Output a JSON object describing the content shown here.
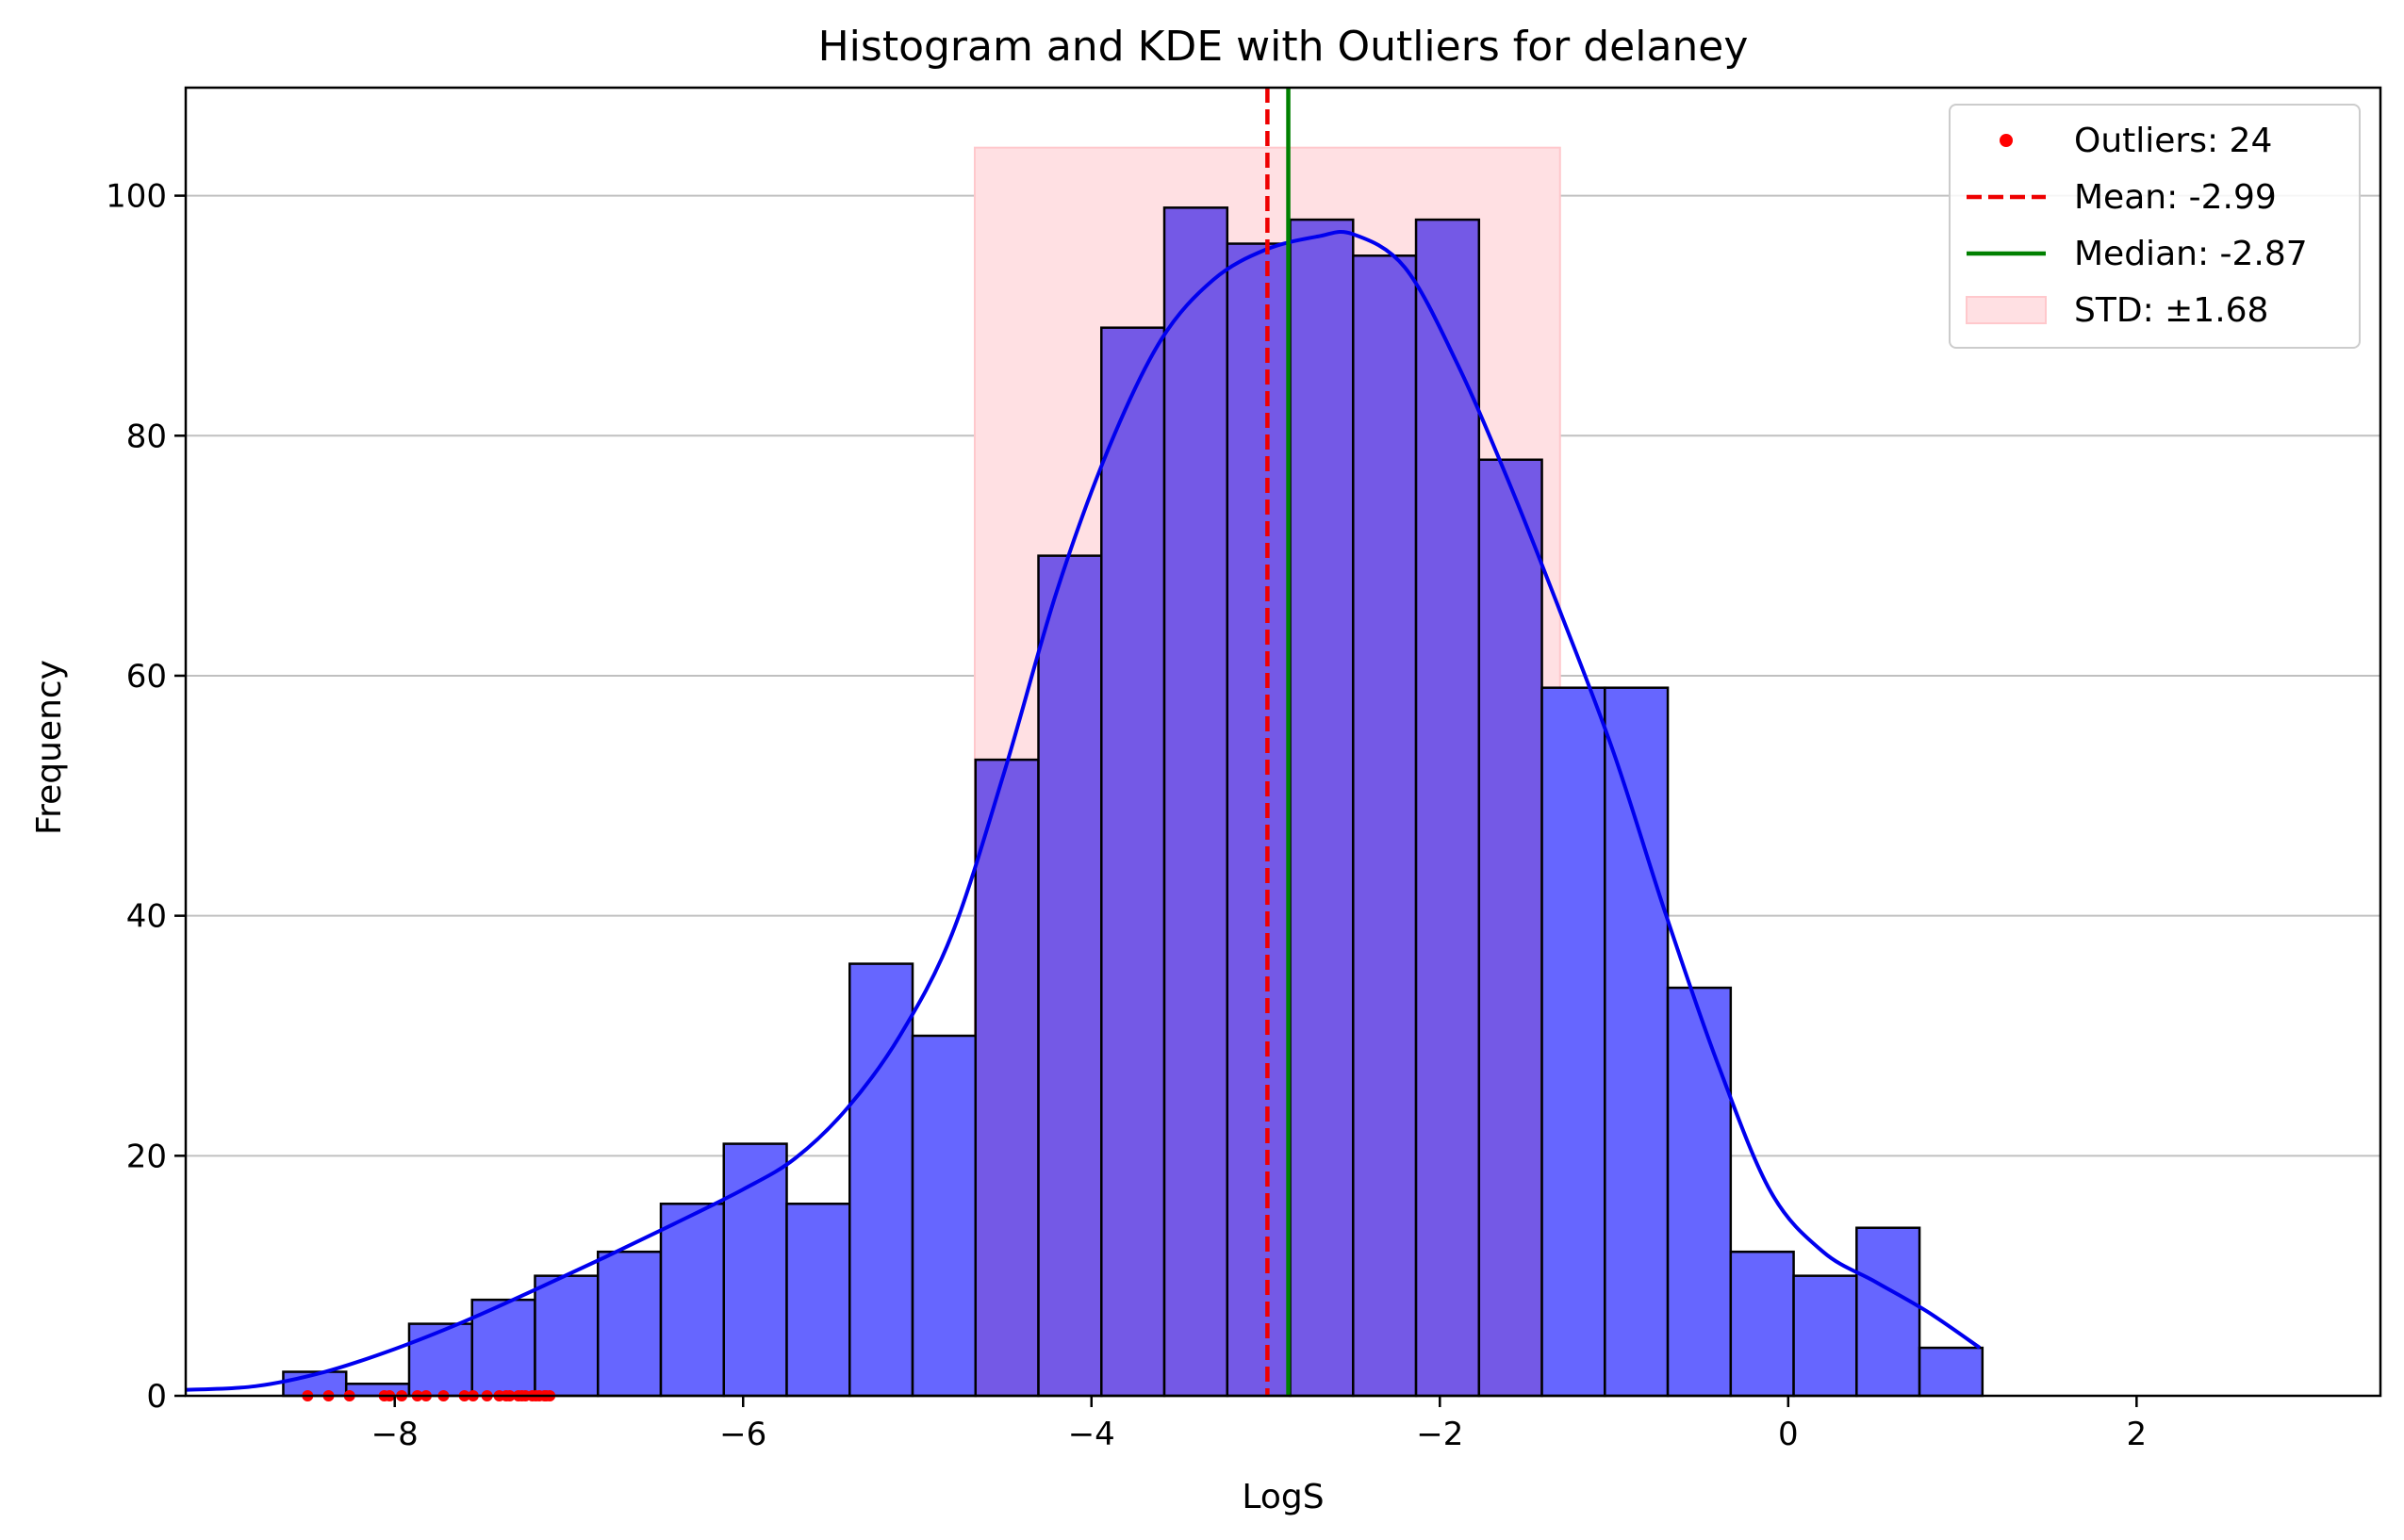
{
  "chart_data": {
    "type": "bar",
    "title": "Histogram and KDE with Outliers for delaney",
    "xlabel": "LogS",
    "ylabel": "Frequency",
    "xlim": [
      -9.2,
      3.4
    ],
    "ylim": [
      0,
      109
    ],
    "grid": "y",
    "legend_position": "top-right",
    "colors": {
      "bar_fill": "#6666ff",
      "bar_overlap_fill": "#7459e6",
      "bar_edge": "#000000",
      "kde": "#0000ee",
      "outlier": "#ff0000",
      "mean": "#ee0000",
      "median": "#008000",
      "std_fill": "#ffe0e3",
      "grid": "#c0c0c0"
    },
    "x_ticks": [
      {
        "value": -8,
        "label": "−8"
      },
      {
        "value": -6,
        "label": "−6"
      },
      {
        "value": -4,
        "label": "−4"
      },
      {
        "value": -2,
        "label": "−2"
      },
      {
        "value": 0,
        "label": "0"
      },
      {
        "value": 2,
        "label": "2"
      }
    ],
    "y_ticks": [
      {
        "value": 0,
        "label": "0"
      },
      {
        "value": 20,
        "label": "20"
      },
      {
        "value": 40,
        "label": "40"
      },
      {
        "value": 60,
        "label": "60"
      },
      {
        "value": 80,
        "label": "80"
      },
      {
        "value": 100,
        "label": "100"
      }
    ],
    "bins": {
      "start": -8.64,
      "width": 0.3613,
      "counts": [
        2,
        1,
        6,
        8,
        10,
        12,
        16,
        21,
        16,
        36,
        30,
        53,
        70,
        89,
        99,
        96,
        98,
        95,
        98,
        78,
        59,
        59,
        34,
        12,
        10,
        14,
        4
      ]
    },
    "kde": [
      [
        -9.2,
        0.5
      ],
      [
        -8.8,
        0.8
      ],
      [
        -8.4,
        2.0
      ],
      [
        -8.0,
        3.9
      ],
      [
        -7.6,
        6.2
      ],
      [
        -7.2,
        8.8
      ],
      [
        -6.8,
        11.5
      ],
      [
        -6.4,
        14.3
      ],
      [
        -6.0,
        17.2
      ],
      [
        -5.7,
        19.8
      ],
      [
        -5.4,
        24.0
      ],
      [
        -5.1,
        30.0
      ],
      [
        -4.8,
        38.5
      ],
      [
        -4.5,
        52.0
      ],
      [
        -4.2,
        67.0
      ],
      [
        -3.9,
        79.0
      ],
      [
        -3.6,
        88.0
      ],
      [
        -3.3,
        93.0
      ],
      [
        -3.0,
        95.5
      ],
      [
        -2.7,
        96.6
      ],
      [
        -2.5,
        96.8
      ],
      [
        -2.2,
        94.0
      ],
      [
        -1.9,
        86.0
      ],
      [
        -1.6,
        76.0
      ],
      [
        -1.3,
        65.0
      ],
      [
        -1.0,
        53.5
      ],
      [
        -0.7,
        40.0
      ],
      [
        -0.4,
        27.5
      ],
      [
        -0.1,
        17.0
      ],
      [
        0.2,
        12.0
      ],
      [
        0.5,
        9.5
      ],
      [
        0.8,
        7.0
      ],
      [
        1.1,
        4.0
      ]
    ],
    "outliers_x": [
      -8.5,
      -8.38,
      -8.26,
      -8.06,
      -7.96,
      -7.87,
      -7.82,
      -7.72,
      -7.55,
      -7.47,
      -7.4,
      -7.34,
      -7.29,
      -7.25,
      -7.21,
      -7.17,
      -7.14,
      -7.11,
      -8.03,
      -7.6,
      -7.36,
      -7.19,
      -7.13,
      -7.27
    ],
    "mean": -2.99,
    "median": -2.87,
    "std": 1.68,
    "std_band": {
      "x0": -4.67,
      "x1": -1.31,
      "height": 104
    },
    "legend": [
      {
        "kind": "dot",
        "label": "Outliers: 24"
      },
      {
        "kind": "dashed",
        "label": "Mean: -2.99"
      },
      {
        "kind": "solid",
        "label": "Median: -2.87"
      },
      {
        "kind": "patch",
        "label": "STD: ±1.68"
      }
    ]
  }
}
